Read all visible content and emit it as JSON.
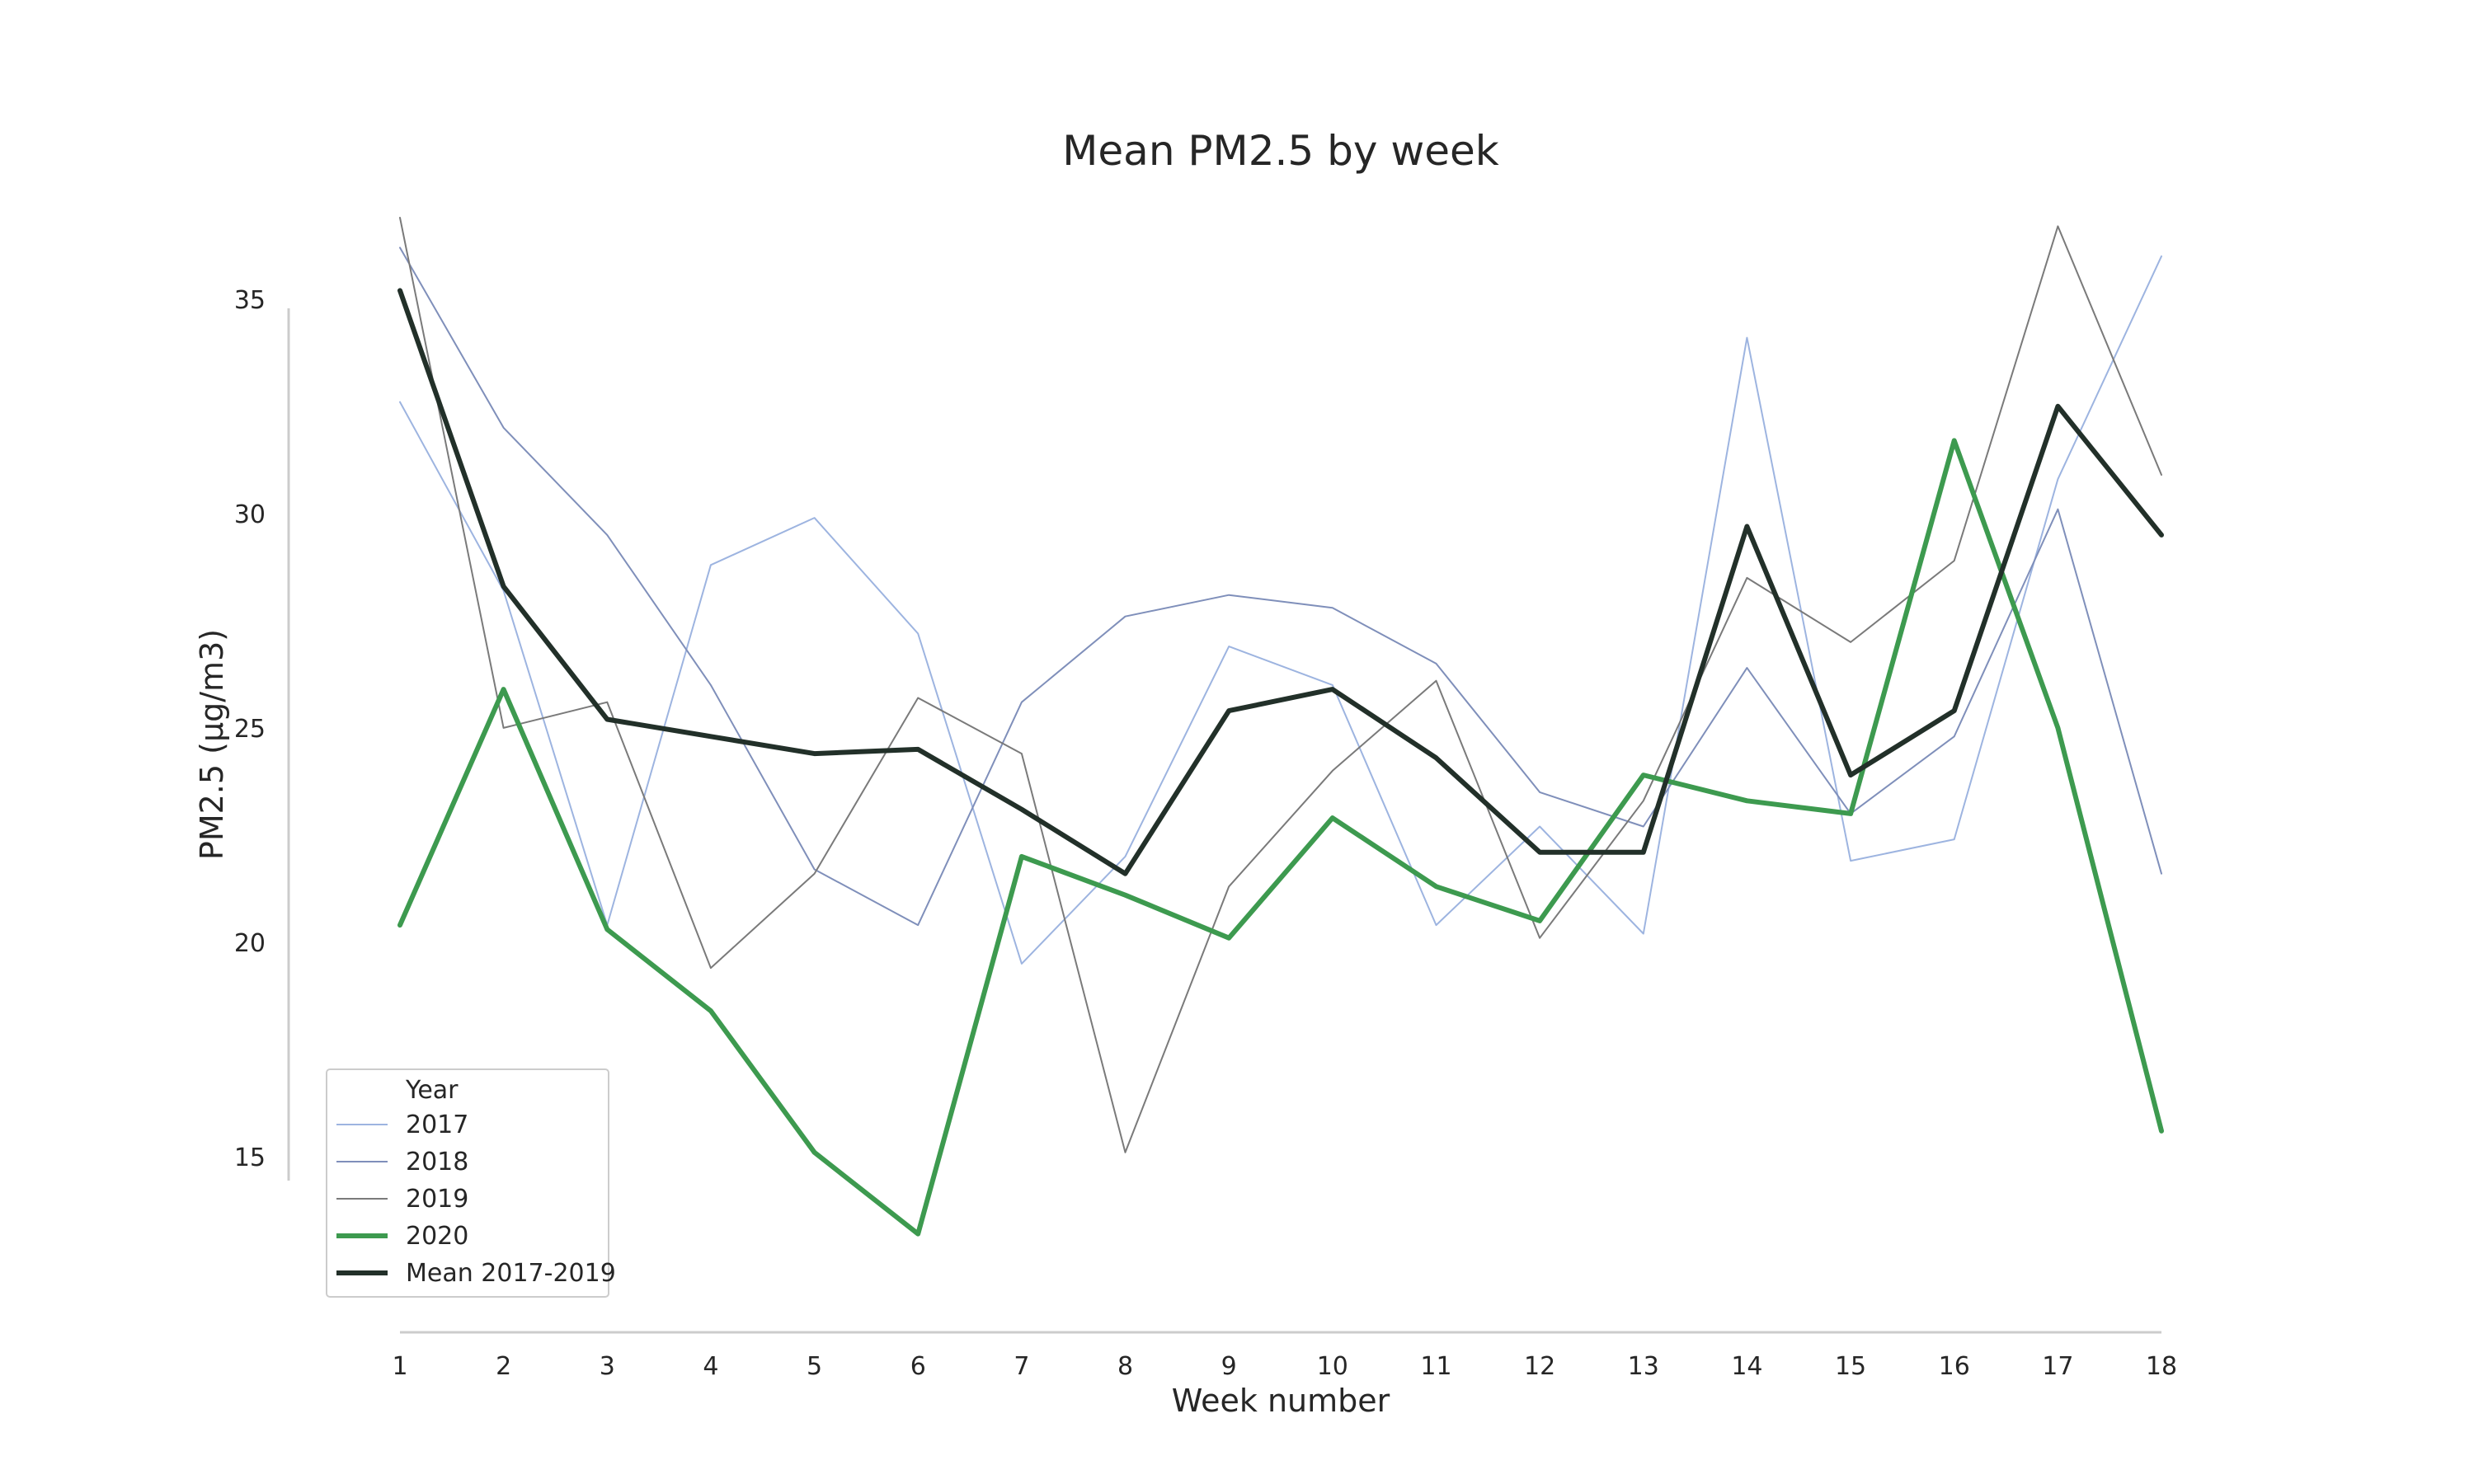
{
  "chart_data": {
    "type": "line",
    "title": "Mean PM2.5 by week",
    "xlabel": "Week number",
    "ylabel": "PM2.5 (µg/m3)",
    "x": [
      1,
      2,
      3,
      4,
      5,
      6,
      7,
      8,
      9,
      10,
      11,
      12,
      13,
      14,
      15,
      16,
      17,
      18
    ],
    "x_ticks": [
      "1",
      "2",
      "3",
      "4",
      "5",
      "6",
      "7",
      "8",
      "9",
      "10",
      "11",
      "12",
      "13",
      "14",
      "15",
      "16",
      "17",
      "18"
    ],
    "y_ticks": [
      "15",
      "20",
      "25",
      "30",
      "35"
    ],
    "xlim": [
      1,
      18
    ],
    "ylim": [
      11.5,
      36.9
    ],
    "grid": false,
    "legend": {
      "title": "Year",
      "position": "lower-left"
    },
    "series": [
      {
        "name": "2017",
        "color": "#9db4e0",
        "width": "thin",
        "values": [
          32.6,
          28.2,
          20.4,
          28.8,
          29.9,
          27.2,
          19.5,
          22.0,
          26.9,
          26.0,
          20.4,
          22.7,
          20.2,
          34.1,
          21.9,
          22.4,
          30.8,
          36.0
        ]
      },
      {
        "name": "2018",
        "color": "#7f8fba",
        "width": "thin",
        "values": [
          36.2,
          32.0,
          29.5,
          26.0,
          21.7,
          20.4,
          25.6,
          27.6,
          28.1,
          27.8,
          26.5,
          23.5,
          22.7,
          26.4,
          23.0,
          24.8,
          30.1,
          21.6
        ]
      },
      {
        "name": "2019",
        "color": "#7a7a7a",
        "width": "thin",
        "values": [
          36.9,
          25.0,
          25.6,
          19.4,
          21.6,
          25.7,
          24.4,
          15.1,
          21.3,
          24.0,
          26.1,
          20.1,
          23.3,
          28.5,
          27.0,
          28.9,
          36.7,
          30.9
        ]
      },
      {
        "name": "2020",
        "color": "#3d9a4f",
        "width": "thick",
        "values": [
          20.4,
          25.9,
          20.3,
          18.4,
          15.1,
          13.2,
          22.0,
          21.1,
          20.1,
          22.9,
          21.3,
          20.5,
          23.9,
          23.3,
          23.0,
          31.7,
          25.0,
          15.6
        ]
      },
      {
        "name": "Mean 2017-2019",
        "color": "#223029",
        "width": "thick",
        "values": [
          35.2,
          28.3,
          25.2,
          24.8,
          24.4,
          24.5,
          23.1,
          21.6,
          25.4,
          25.9,
          24.3,
          22.1,
          22.1,
          29.7,
          23.9,
          25.4,
          32.5,
          29.5
        ]
      }
    ]
  }
}
